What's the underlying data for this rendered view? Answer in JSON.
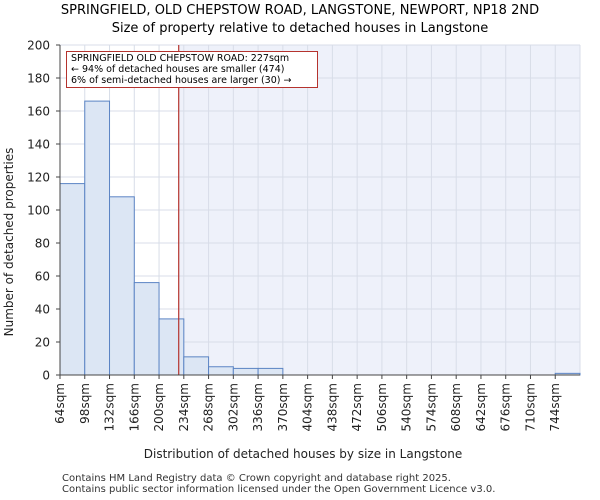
{
  "chart_data": {
    "type": "bar",
    "title": "SPRINGFIELD, OLD CHEPSTOW ROAD, LANGSTONE, NEWPORT, NP18 2ND",
    "subtitle": "Size of property relative to detached houses in Langstone",
    "xlabel": "Distribution of detached houses by size in Langstone",
    "ylabel": "Number of detached properties",
    "categories": [
      "64sqm",
      "98sqm",
      "132sqm",
      "166sqm",
      "200sqm",
      "234sqm",
      "268sqm",
      "302sqm",
      "336sqm",
      "370sqm",
      "404sqm",
      "438sqm",
      "472sqm",
      "506sqm",
      "540sqm",
      "574sqm",
      "608sqm",
      "642sqm",
      "676sqm",
      "710sqm",
      "744sqm"
    ],
    "bin_edges": [
      64,
      98,
      132,
      166,
      200,
      234,
      268,
      302,
      336,
      370,
      404,
      438,
      472,
      506,
      540,
      574,
      608,
      642,
      676,
      710,
      744,
      778
    ],
    "values": [
      116,
      166,
      108,
      56,
      34,
      11,
      5,
      4,
      4,
      0,
      0,
      0,
      0,
      0,
      0,
      0,
      0,
      0,
      0,
      0,
      1
    ],
    "ylim": [
      0,
      200
    ],
    "yticks": [
      0,
      20,
      40,
      60,
      80,
      100,
      120,
      140,
      160,
      180,
      200
    ],
    "grid": true,
    "marker": {
      "value": 227,
      "label_line1": "SPRINGFIELD OLD CHEPSTOW ROAD: 227sqm",
      "label_line2": "← 94% of detached houses are smaller (474)",
      "label_line3": "6% of semi-detached houses are larger (30) →"
    }
  },
  "colors": {
    "bar_fill": "#dce6f4",
    "bar_stroke": "#5b84c4",
    "shade": "#eef1fa",
    "marker_line": "#b5332e",
    "grid": "#d8dde8"
  },
  "footer": {
    "line1": "Contains HM Land Registry data © Crown copyright and database right 2025.",
    "line2": "Contains public sector information licensed under the Open Government Licence v3.0."
  }
}
